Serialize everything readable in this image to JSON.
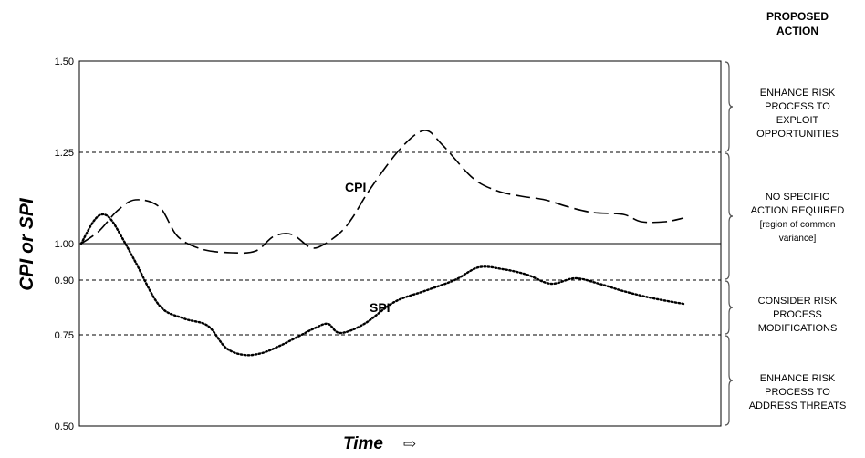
{
  "header": {
    "line1": "PROPOSED",
    "line2": "ACTION"
  },
  "actions": [
    {
      "text": "ENHANCE RISK\nPROCESS TO\nEXPLOIT\nOPPORTUNITIES",
      "note": ""
    },
    {
      "text": "NO SPECIFIC\nACTION REQUIRED",
      "note": "[region of common\nvariance]"
    },
    {
      "text": "CONSIDER RISK\nPROCESS\nMODIFICATIONS",
      "note": ""
    },
    {
      "text": "ENHANCE RISK\nPROCESS TO\nADDRESS THREATS",
      "note": ""
    }
  ],
  "chart_data": {
    "type": "line",
    "title": "",
    "xlabel": "Time",
    "xlabel_arrow": "⇨",
    "ylabel": "CPI or SPI",
    "ylim": [
      0.5,
      1.5
    ],
    "yticks": [
      {
        "value": 1.5,
        "label": "1.50"
      },
      {
        "value": 1.25,
        "label": "1.25"
      },
      {
        "value": 1.0,
        "label": "1.00"
      },
      {
        "value": 0.9,
        "label": "0.90"
      },
      {
        "value": 0.75,
        "label": "0.75"
      },
      {
        "value": 0.5,
        "label": "0.50"
      }
    ],
    "reference_lines": [
      {
        "value": 1.25,
        "style": "dashed"
      },
      {
        "value": 1.0,
        "style": "solid"
      },
      {
        "value": 0.9,
        "style": "dashed"
      },
      {
        "value": 0.75,
        "style": "dashed"
      }
    ],
    "grid": false,
    "series": [
      {
        "name": "CPI",
        "style": "dashed",
        "x": [
          0,
          3,
          6,
          9,
          13,
          16,
          20,
          25,
          29,
          32,
          35,
          38,
          40,
          43,
          45,
          48,
          53,
          57,
          60,
          65,
          69,
          73,
          77,
          81,
          85,
          90,
          93,
          97,
          100
        ],
        "y": [
          1.0,
          1.035,
          1.09,
          1.12,
          1.1,
          1.02,
          0.985,
          0.975,
          0.98,
          1.02,
          1.025,
          0.99,
          0.995,
          1.03,
          1.07,
          1.15,
          1.26,
          1.31,
          1.27,
          1.18,
          1.145,
          1.13,
          1.12,
          1.1,
          1.085,
          1.08,
          1.06,
          1.06,
          1.07
        ]
      },
      {
        "name": "SPI",
        "style": "dotted",
        "x": [
          0,
          2,
          3.5,
          5,
          7,
          9,
          13,
          17,
          21,
          24,
          27,
          30,
          33,
          36,
          39,
          41,
          43,
          47,
          52,
          57,
          62,
          66,
          70,
          74,
          78,
          82,
          86,
          90,
          95,
          100
        ],
        "y": [
          1.0,
          1.06,
          1.08,
          1.065,
          1.01,
          0.95,
          0.83,
          0.795,
          0.775,
          0.715,
          0.695,
          0.7,
          0.72,
          0.745,
          0.77,
          0.78,
          0.755,
          0.78,
          0.84,
          0.87,
          0.9,
          0.935,
          0.93,
          0.915,
          0.89,
          0.905,
          0.89,
          0.87,
          0.85,
          0.835
        ]
      }
    ]
  }
}
